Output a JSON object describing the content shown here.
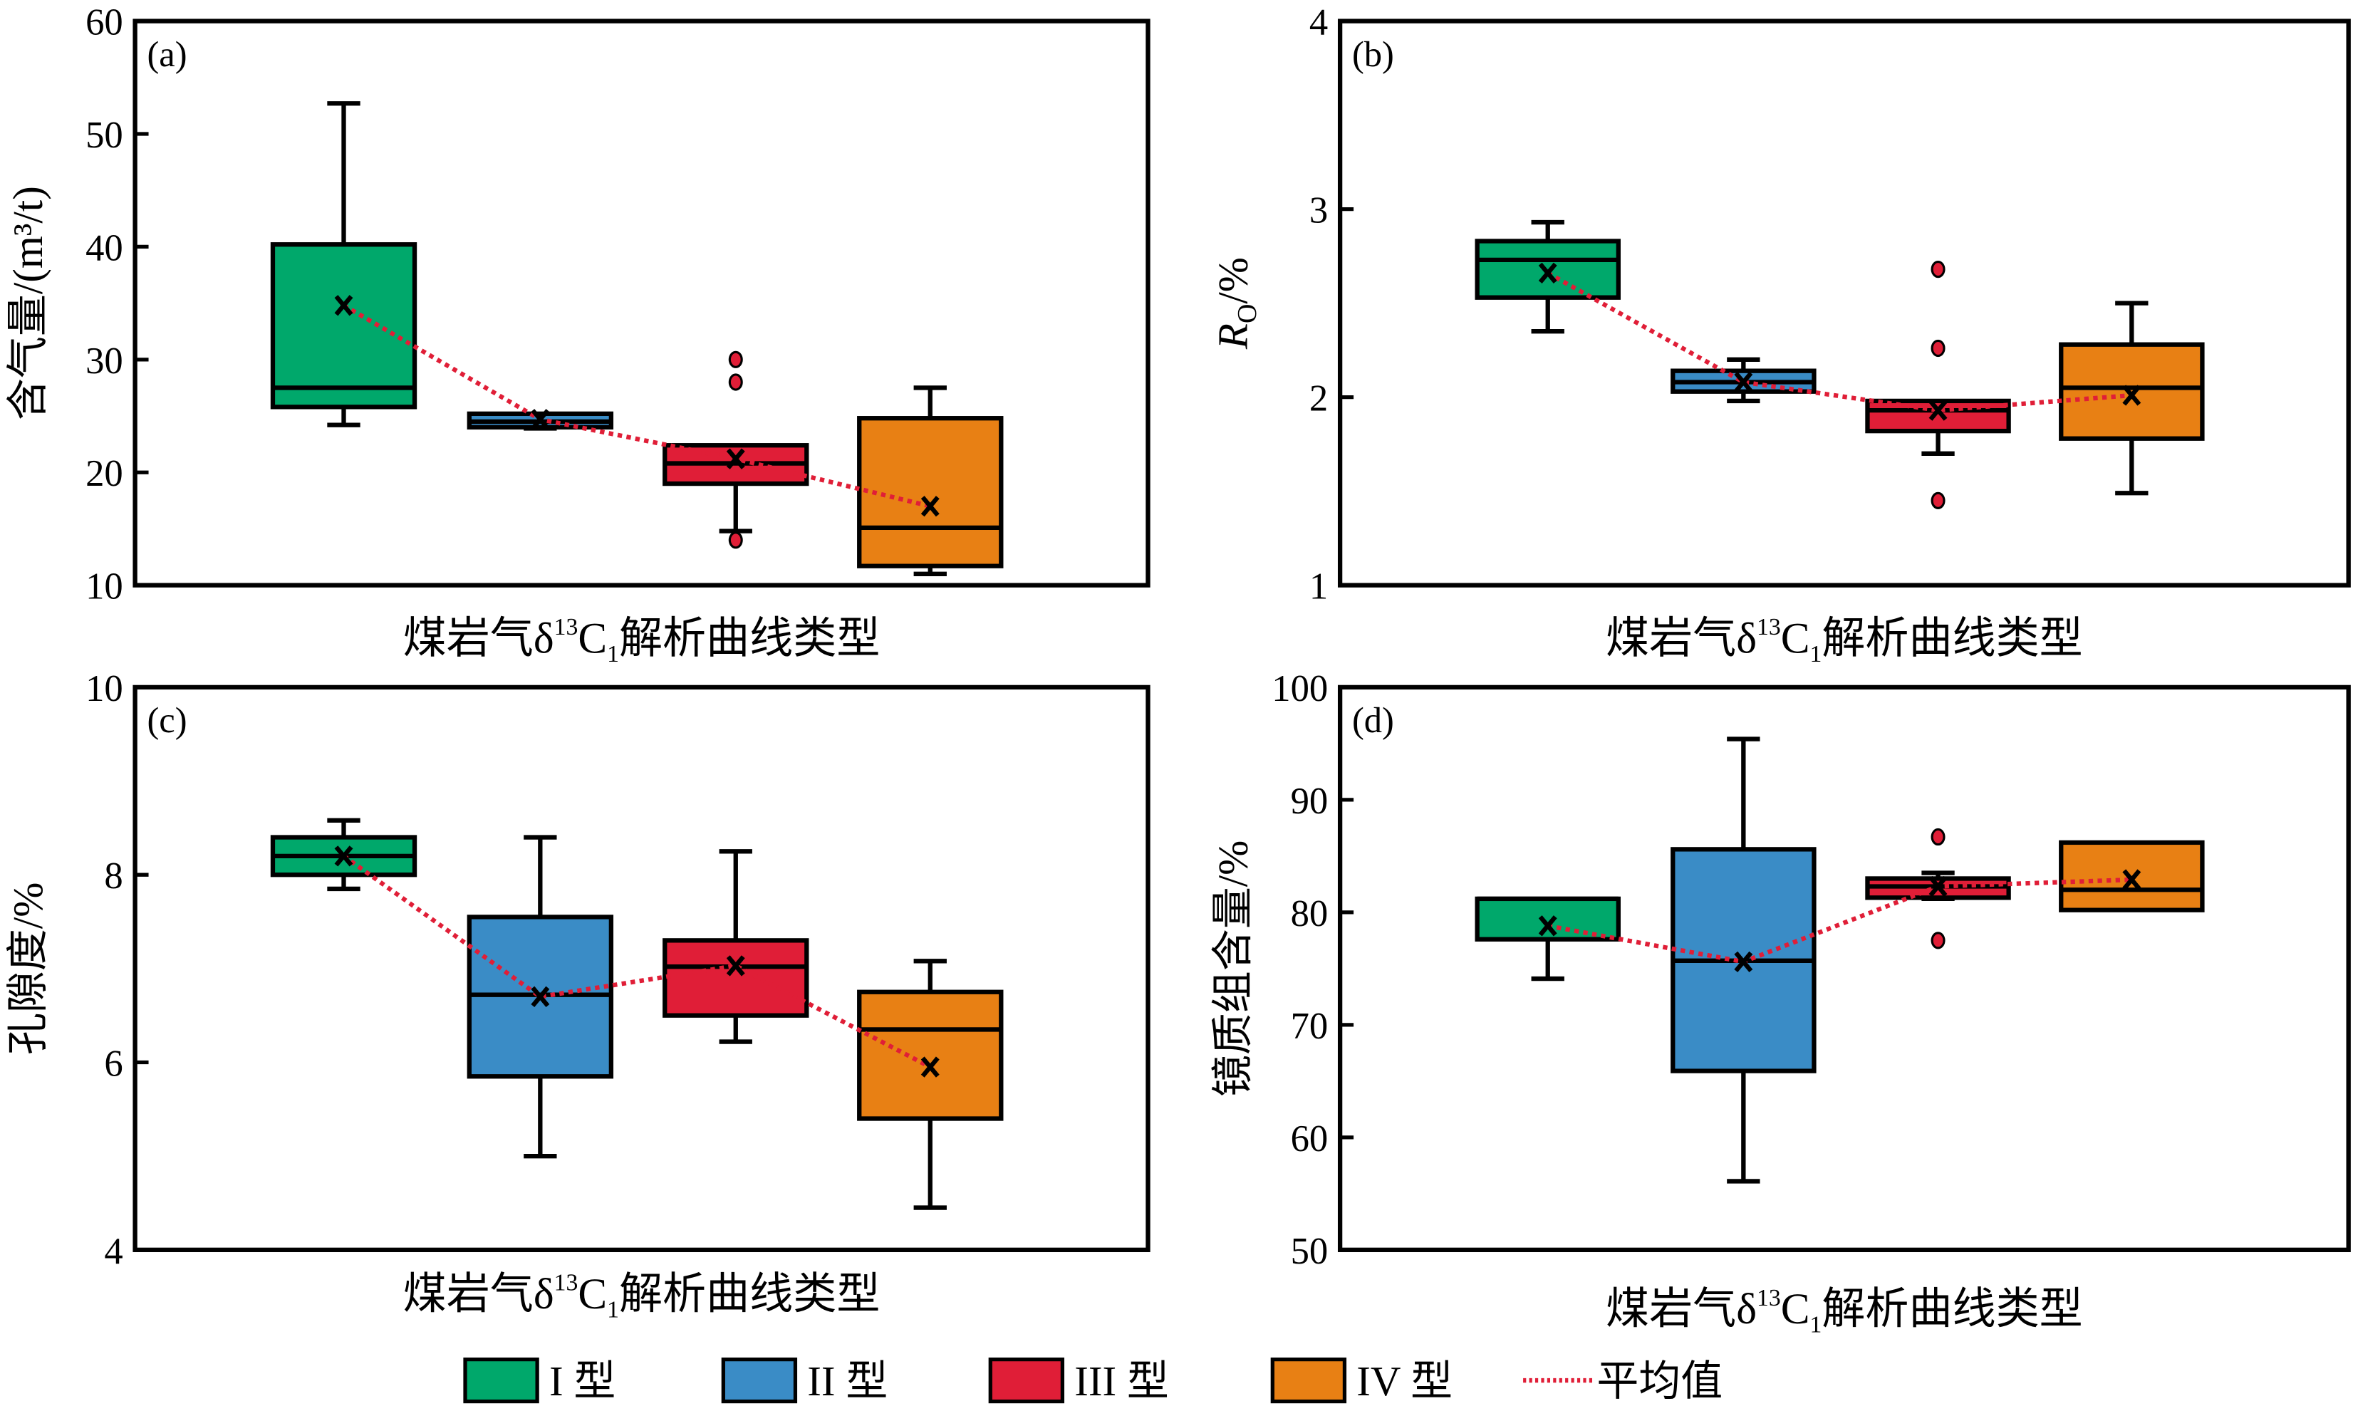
{
  "chart_data": [
    {
      "type": "box",
      "panel_label": "(a)",
      "ylabel": "含气量/(m³/t)",
      "ylim": [
        10,
        60
      ],
      "yticks": [
        10,
        20,
        30,
        40,
        50,
        60
      ],
      "xlabel": {
        "pre": "煤岩气δ",
        "sup": "13",
        "mid": "C",
        "sub": "1",
        "post": "解析曲线类型"
      },
      "categories": [
        "I 型",
        "II 型",
        "III 型",
        "IV 型"
      ],
      "boxes": [
        {
          "min": 24.2,
          "q1": 25.8,
          "median": 27.5,
          "q3": 40.2,
          "max": 52.7,
          "mean": 34.8,
          "outliers": []
        },
        {
          "min": 23.9,
          "q1": 24.0,
          "median": 24.5,
          "q3": 25.2,
          "max": 25.2,
          "mean": 24.7,
          "outliers": []
        },
        {
          "min": 14.8,
          "q1": 19.0,
          "median": 20.8,
          "q3": 22.4,
          "max": 22.4,
          "mean": 21.2,
          "outliers": [
            30.0,
            28.0,
            14.0
          ]
        },
        {
          "min": 11.0,
          "q1": 11.7,
          "median": 15.1,
          "q3": 24.8,
          "max": 27.5,
          "mean": 17.0,
          "outliers": []
        }
      ]
    },
    {
      "type": "box",
      "panel_label": "(b)",
      "ylabel": {
        "R": "R",
        "sub": "O",
        "rest": "/%"
      },
      "ylim": [
        1,
        4
      ],
      "yticks": [
        1,
        2,
        3,
        4
      ],
      "xlabel": {
        "pre": "煤岩气δ",
        "sup": "13",
        "mid": "C",
        "sub": "1",
        "post": "解析曲线类型"
      },
      "categories": [
        "I 型",
        "II 型",
        "III 型",
        "IV 型"
      ],
      "boxes": [
        {
          "min": 2.35,
          "q1": 2.53,
          "median": 2.73,
          "q3": 2.83,
          "max": 2.93,
          "mean": 2.66,
          "outliers": []
        },
        {
          "min": 1.98,
          "q1": 2.03,
          "median": 2.08,
          "q3": 2.14,
          "max": 2.2,
          "mean": 2.08,
          "outliers": []
        },
        {
          "min": 1.7,
          "q1": 1.82,
          "median": 1.93,
          "q3": 1.98,
          "max": 1.98,
          "mean": 1.93,
          "outliers": [
            2.68,
            2.26,
            1.45
          ]
        },
        {
          "min": 1.49,
          "q1": 1.78,
          "median": 2.05,
          "q3": 2.28,
          "max": 2.5,
          "mean": 2.01,
          "outliers": []
        }
      ]
    },
    {
      "type": "box",
      "panel_label": "(c)",
      "ylabel": "孔隙度/%",
      "ylim": [
        4,
        10
      ],
      "yticks": [
        4,
        6,
        8,
        10
      ],
      "xlabel": {
        "pre": "煤岩气δ",
        "sup": "13",
        "mid": "C",
        "sub": "1",
        "post": "解析曲线类型"
      },
      "categories": [
        "I 型",
        "II 型",
        "III 型",
        "IV 型"
      ],
      "boxes": [
        {
          "min": 7.85,
          "q1": 8.0,
          "median": 8.2,
          "q3": 8.4,
          "max": 8.58,
          "mean": 8.2,
          "outliers": []
        },
        {
          "min": 5.0,
          "q1": 5.85,
          "median": 6.72,
          "q3": 7.55,
          "max": 8.4,
          "mean": 6.7,
          "outliers": []
        },
        {
          "min": 6.22,
          "q1": 6.5,
          "median": 7.02,
          "q3": 7.3,
          "max": 8.25,
          "mean": 7.03,
          "outliers": []
        },
        {
          "min": 4.45,
          "q1": 5.4,
          "median": 6.35,
          "q3": 6.75,
          "max": 7.08,
          "mean": 5.95,
          "outliers": []
        }
      ]
    },
    {
      "type": "box",
      "panel_label": "(d)",
      "ylabel": "镜质组含量/%",
      "ylim": [
        50,
        100
      ],
      "yticks": [
        50,
        60,
        70,
        80,
        90,
        100
      ],
      "xlabel": {
        "pre": "煤岩气δ",
        "sup": "13",
        "mid": "C",
        "sub": "1",
        "post": "解析曲线类型"
      },
      "categories": [
        "I 型",
        "II 型",
        "III 型",
        "IV 型"
      ],
      "boxes": [
        {
          "min": 74.1,
          "q1": 77.6,
          "median": 81.2,
          "q3": 81.2,
          "max": 81.2,
          "mean": 78.8,
          "outliers": []
        },
        {
          "min": 56.1,
          "q1": 65.9,
          "median": 75.7,
          "q3": 85.6,
          "max": 95.4,
          "mean": 75.6,
          "outliers": []
        },
        {
          "min": 81.2,
          "q1": 81.3,
          "median": 82.3,
          "q3": 83.0,
          "max": 83.5,
          "mean": 82.3,
          "outliers": [
            86.7,
            77.5
          ]
        },
        {
          "min": 80.2,
          "q1": 80.2,
          "median": 82.0,
          "q3": 86.2,
          "max": 86.2,
          "mean": 82.9,
          "outliers": []
        }
      ]
    }
  ],
  "legend": {
    "items": [
      {
        "label": "I 型",
        "color": "#00a86b"
      },
      {
        "label": "II 型",
        "color": "#3a8cc6"
      },
      {
        "label": "III 型",
        "color": "#e01e37"
      },
      {
        "label": "IV 型",
        "color": "#e88014"
      }
    ],
    "mean_label": "平均值",
    "mean_color": "#e01e37"
  }
}
